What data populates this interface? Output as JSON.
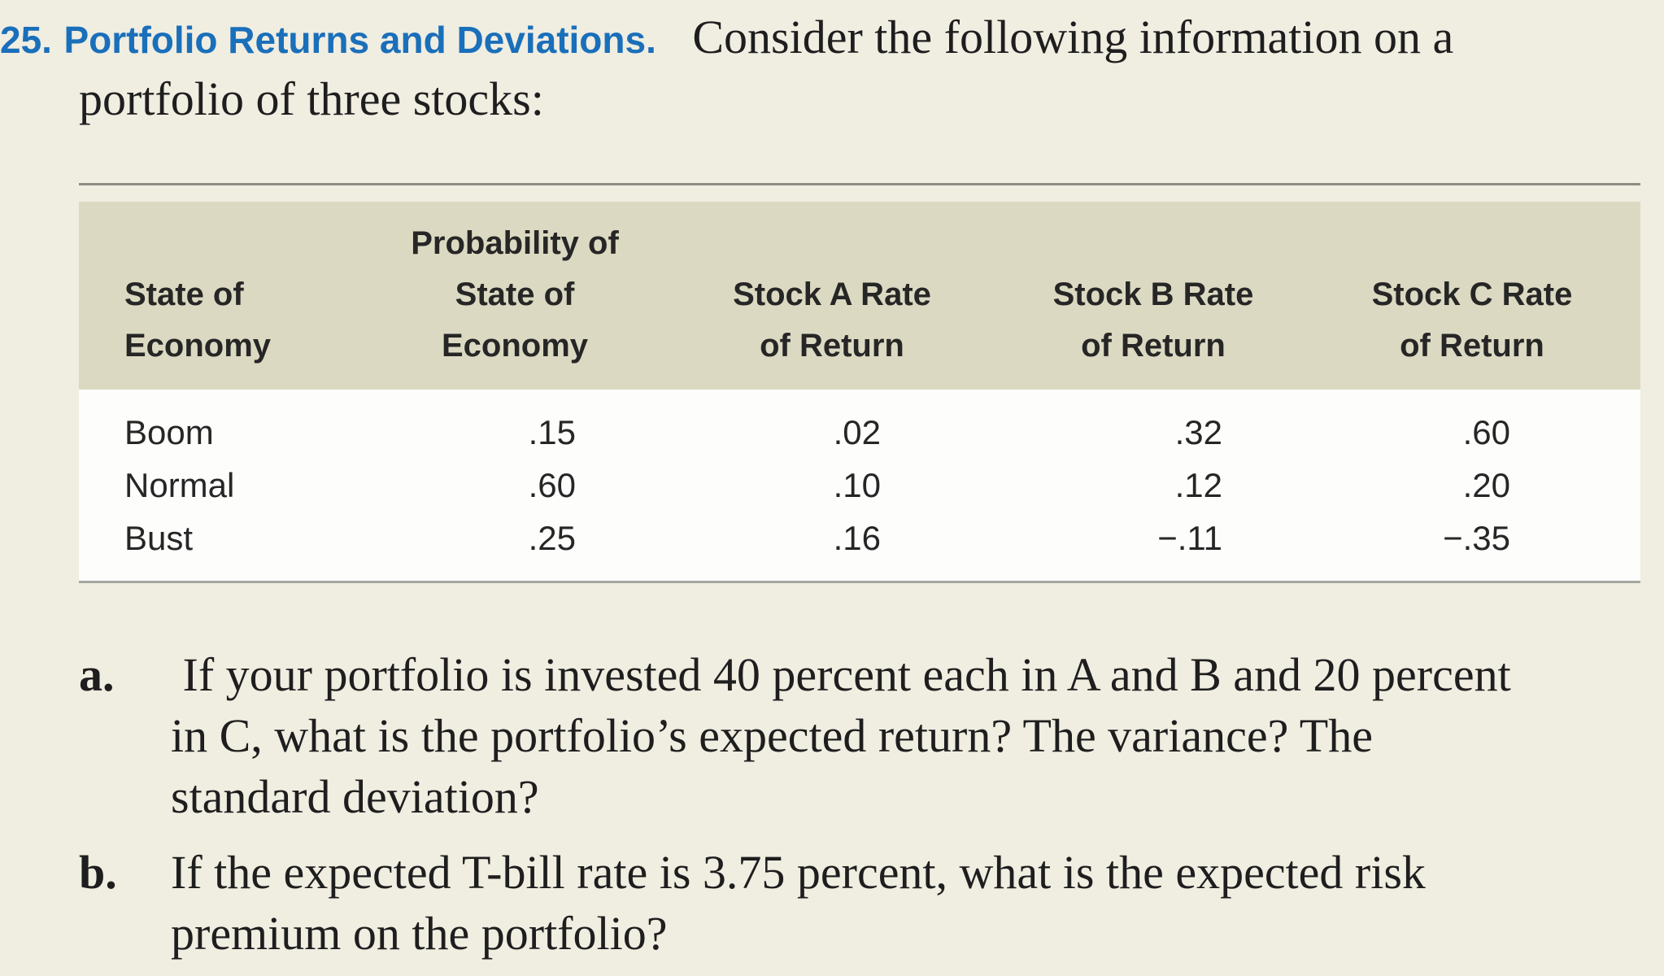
{
  "problem": {
    "number": "25.",
    "title": "Portfolio Returns and Deviations.",
    "intro_line1": "Consider the following information on a",
    "intro_line2": "portfolio of three stocks:",
    "accent_color": "#1a6fba"
  },
  "table": {
    "headers": {
      "state": [
        "State of",
        "Economy"
      ],
      "probability": [
        "Probability of",
        "State of",
        "Economy"
      ],
      "stock_a": [
        "Stock A Rate",
        "of Return"
      ],
      "stock_b": [
        "Stock B Rate",
        "of Return"
      ],
      "stock_c": [
        "Stock C Rate",
        "of Return"
      ]
    },
    "rows": [
      {
        "state": "Boom",
        "probability": ".15",
        "stock_a": ".02",
        "stock_b": ".32",
        "stock_c": ".60"
      },
      {
        "state": "Normal",
        "probability": ".60",
        "stock_a": ".10",
        "stock_b": ".12",
        "stock_c": ".20"
      },
      {
        "state": "Bust",
        "probability": ".25",
        "stock_a": ".16",
        "stock_b": "−.11",
        "stock_c": "−.35"
      }
    ],
    "header_bg": "#dcd9c2"
  },
  "questions": [
    {
      "label": "a.",
      "lines": [
        " If your portfolio is invested 40 percent each in A and B and 20 percent",
        "in C, what is the portfolio’s expected return? The variance? The",
        "standard deviation?"
      ]
    },
    {
      "label": "b.",
      "lines": [
        "If the expected T-bill rate is 3.75 percent, what is the expected risk",
        "premium on the portfolio?"
      ]
    }
  ]
}
